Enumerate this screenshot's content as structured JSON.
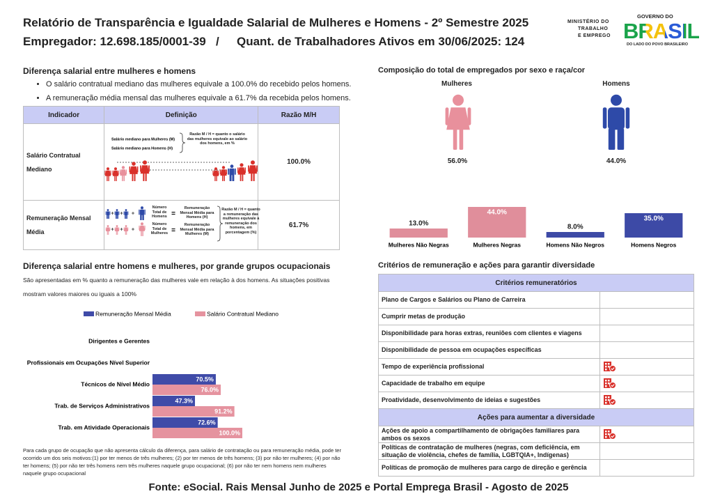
{
  "header": {
    "title": "Relatório de Transparência e Igualdade Salarial de Mulheres e Homens - 2º Semestre 2025",
    "employer": "Empregador: 12.698.185/0001-39",
    "separator": "/",
    "workers": "Quant. de Trabalhadores Ativos em 30/06/2025: 124"
  },
  "logos": {
    "ministry": [
      "MINISTÉRIO DO",
      "TRABALHO",
      "E EMPREGO"
    ],
    "government": "GOVERNO DO",
    "brasil": "BRASIL",
    "slogan": "DO LADO DO POVO BRASILEIRO"
  },
  "salary_gap": {
    "title": "Diferença salarial entre mulheres e homens",
    "bullets": [
      "O salário contratual mediano das mulheres equivale a 100.0% do recebido pelos homens.",
      "A remuneração média mensal das mulheres equivale a 61.7% da recebida pelos homens."
    ],
    "table": {
      "headers": [
        "Indicador",
        "Definição",
        "Razão M/H"
      ],
      "rows": [
        {
          "indicator": "Salário Contratual Mediano",
          "ratio": "100.0%",
          "definition": {
            "women": "Salário mediano para Mulheres (M)",
            "men": "Salário mediano para Homens (H)",
            "note": "Razão M / H = quanto o salário das mulheres equivale ao salário dos homens, em %"
          }
        },
        {
          "indicator": "Remuneração Mensal Média",
          "ratio": "61.7%",
          "definition": {
            "men_count": "Número Total de Homens",
            "men_pay": "Remuneração Mensal Média para Homens (H)",
            "women_count": "Número Total de Mulheres",
            "women_pay": "Remuneração Mensal Média para Mulheres (M)",
            "equals": "=",
            "note": "Razão M / H = quanto a remuneração das mulheres equivale à remuneração dos homens, em porcentagem (%)"
          }
        }
      ]
    }
  },
  "composition": {
    "title": "Composição do total de empregados por sexo e raça/cor",
    "women": {
      "label": "Mulheres",
      "share": "56.0%"
    },
    "men": {
      "label": "Homens",
      "share": "44.0%"
    }
  },
  "chart_data": [
    {
      "type": "bar",
      "categories": [
        "Mulheres Não Negras",
        "Mulheres Negras",
        "Homens Não Negros",
        "Homens Negros"
      ],
      "values": [
        13,
        44,
        8,
        35
      ],
      "value_labels": [
        "13.0%",
        "44.0%",
        "8.0%",
        "35.0%"
      ],
      "colors": [
        "#e08e9b",
        "#e08e9b",
        "#3d4aa6",
        "#3d4aa6"
      ],
      "ylim": [
        0,
        50
      ]
    },
    {
      "type": "hbar",
      "title": "Diferença salarial entre homens e mulheres, por grande grupos ocupacionais",
      "subtitle": "São apresentadas em % quanto a remuneração das mulheres vale em relação à dos homens. As situações positivas mostram valores maiores ou iguais a 100%",
      "categories": [
        "Dirigentes e Gerentes",
        "Profissionais em Ocupações Nível Superior",
        "Técnicos de Nível Médio",
        "Trab. de Serviços Administrativos",
        "Trab. em Atividade Operacionais"
      ],
      "series": [
        {
          "name": "Remuneração Mensal Média",
          "color": "#3f4ba8",
          "values": [
            null,
            null,
            70.5,
            47.3,
            72.6
          ],
          "value_labels": [
            null,
            null,
            "70.5%",
            "47.3%",
            "72.6%"
          ]
        },
        {
          "name": "Salário Contratual Mediano",
          "color": "#e5939f",
          "values": [
            null,
            null,
            76.0,
            91.2,
            100.0
          ],
          "value_labels": [
            null,
            null,
            "76.0%",
            "91.2%",
            "100.0%"
          ]
        }
      ],
      "xlim": [
        0,
        100
      ],
      "legend": "top",
      "note": "Para cada grupo de ocupação que não apresenta cálculo da diferença, para salário de contratação ou para remuneração média, pode ter ocorrido um dos seis motivos:(1) por ter menos de três mulheres; (2) por ter menos de três homens; (3) por não ter mulheres; (4) por não ter homens; (5) por não ter três homens nem três mulheres naquele grupo ocupacional; (6) por não ter nem homens nem mulheres naquele grupo ocupacional"
    }
  ],
  "criteria": {
    "title": "Critérios de remuneração e ações para garantir diversidade",
    "sections": [
      {
        "header": "Critérios remuneratórios",
        "rows": [
          {
            "label": "Plano de Cargos e Salários ou Plano de Carreira",
            "icon": false
          },
          {
            "label": "Cumprir metas de produção",
            "icon": false
          },
          {
            "label": "Disponibilidade para horas extras, reuniões com clientes e viagens",
            "icon": false
          },
          {
            "label": "Disponibilidade de pessoa em ocupações específicas",
            "icon": false
          },
          {
            "label": "Tempo de experiência profissional",
            "icon": true
          },
          {
            "label": "Capacidade de trabalho em equipe",
            "icon": true
          },
          {
            "label": "Proatividade, desenvolvimento de ideias e sugestões",
            "icon": true
          }
        ]
      },
      {
        "header": "Ações para aumentar a diversidade",
        "rows": [
          {
            "label": "Ações de apoio a compartilhamento de obrigações familiares para ambos os sexos",
            "icon": true
          },
          {
            "label": "Políticas de contratação de mulheres (negras, com deficiência, em situação de violência, chefes de família, LGBTQIA+, Indígenas)",
            "icon": false
          },
          {
            "label": "Políticas de promoção de mulheres para cargo de direção e gerência",
            "icon": false
          }
        ]
      }
    ]
  },
  "footer": {
    "source": "Fonte: eSocial. Rais Mensal Junho de 2025 e Portal Emprega Brasil - Agosto de 2025"
  }
}
